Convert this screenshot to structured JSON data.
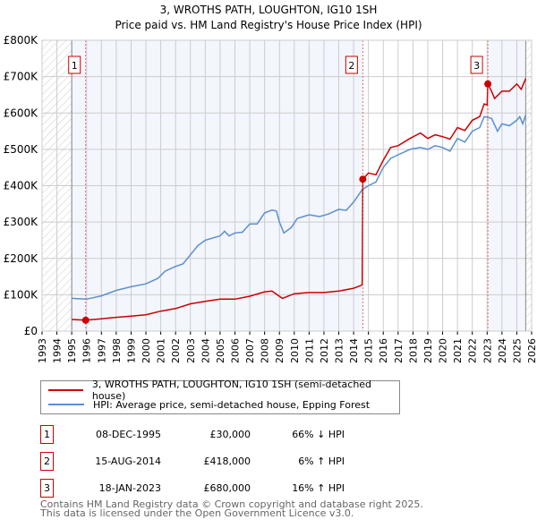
{
  "chart_data": {
    "type": "line",
    "title": "3, WROTHS PATH, LOUGHTON, IG10 1SH",
    "subtitle": "Price paid vs. HM Land Registry's House Price Index (HPI)",
    "xlim": [
      1993,
      2026
    ],
    "ylim": [
      0,
      800000
    ],
    "x_ticks": [
      "1993",
      "1994",
      "1995",
      "1996",
      "1997",
      "1998",
      "1999",
      "2000",
      "2001",
      "2002",
      "2003",
      "2004",
      "2005",
      "2006",
      "2007",
      "2008",
      "2009",
      "2010",
      "2011",
      "2012",
      "2013",
      "2014",
      "2015",
      "2016",
      "2017",
      "2018",
      "2019",
      "2020",
      "2021",
      "2022",
      "2023",
      "2024",
      "2025",
      "2026"
    ],
    "y_ticks": [
      {
        "v": 0,
        "label": "£0"
      },
      {
        "v": 100000,
        "label": "£100K"
      },
      {
        "v": 200000,
        "label": "£200K"
      },
      {
        "v": 300000,
        "label": "£300K"
      },
      {
        "v": 400000,
        "label": "£400K"
      },
      {
        "v": 500000,
        "label": "£500K"
      },
      {
        "v": 600000,
        "label": "£600K"
      },
      {
        "v": 700000,
        "label": "£700K"
      },
      {
        "v": 800000,
        "label": "£800K"
      }
    ],
    "grid": true,
    "series": [
      {
        "name": "3, WROTHS PATH, LOUGHTON, IG10 1SH (semi-detached house)",
        "color": "#cc0000",
        "x": [
          1995.0,
          1995.94,
          1997,
          1998,
          1999,
          2000,
          2001,
          2002,
          2003,
          2004,
          2005,
          2006,
          2007,
          2008,
          2008.5,
          2009.2,
          2010,
          2011,
          2012,
          2013,
          2014,
          2014.58,
          2014.62,
          2015,
          2015.5,
          2016,
          2016.5,
          2017,
          2017.8,
          2018.5,
          2019,
          2019.5,
          2020,
          2020.5,
          2021,
          2021.5,
          2022,
          2022.5,
          2022.8,
          2023.0,
          2023.05,
          2023.3,
          2023.5,
          2024,
          2024.5,
          2025,
          2025.3,
          2025.6
        ],
        "y": [
          32000,
          30000,
          34000,
          38000,
          41000,
          45000,
          55000,
          62000,
          75000,
          82000,
          88000,
          88000,
          96000,
          108000,
          110000,
          90000,
          103000,
          106000,
          106000,
          110000,
          118000,
          127000,
          418000,
          435000,
          430000,
          470000,
          505000,
          510000,
          530000,
          545000,
          530000,
          540000,
          535000,
          528000,
          560000,
          552000,
          580000,
          590000,
          625000,
          622000,
          680000,
          660000,
          640000,
          660000,
          660000,
          680000,
          665000,
          695000
        ]
      },
      {
        "name": "HPI: Average price, semi-detached house, Epping Forest",
        "color": "#5b8fd0",
        "x": [
          1995,
          1996,
          1997,
          1998,
          1999,
          2000,
          2000.8,
          2001.3,
          2002,
          2002.5,
          2003,
          2003.5,
          2004,
          2005,
          2005.3,
          2005.6,
          2006,
          2006.5,
          2007,
          2007.5,
          2008,
          2008.5,
          2008.8,
          2009,
          2009.3,
          2009.8,
          2010.2,
          2011,
          2011.7,
          2012.3,
          2013,
          2013.5,
          2014,
          2014.6,
          2015,
          2015.5,
          2016,
          2016.5,
          2017,
          2017.8,
          2018.5,
          2019,
          2019.5,
          2020,
          2020.5,
          2021,
          2021.5,
          2022,
          2022.5,
          2022.8,
          2023.3,
          2023.7,
          2024,
          2024.5,
          2025,
          2025.2,
          2025.4,
          2025.6
        ],
        "y": [
          90000,
          88000,
          97000,
          112000,
          122000,
          130000,
          145000,
          165000,
          178000,
          185000,
          210000,
          235000,
          250000,
          262000,
          275000,
          262000,
          270000,
          272000,
          295000,
          295000,
          325000,
          333000,
          330000,
          300000,
          270000,
          285000,
          310000,
          320000,
          315000,
          322000,
          335000,
          332000,
          355000,
          390000,
          400000,
          410000,
          450000,
          475000,
          485000,
          500000,
          505000,
          500000,
          510000,
          505000,
          495000,
          530000,
          520000,
          550000,
          560000,
          590000,
          585000,
          550000,
          570000,
          565000,
          580000,
          590000,
          570000,
          595000
        ]
      }
    ],
    "sales": [
      {
        "label": "1",
        "x": 1995.94,
        "y": 30000,
        "date": "08-DEC-1995",
        "price": "£30,000",
        "hpi": "66% ↓ HPI"
      },
      {
        "label": "2",
        "x": 2014.62,
        "y": 418000,
        "date": "15-AUG-2014",
        "price": "£418,000",
        "hpi": "6% ↑ HPI"
      },
      {
        "label": "3",
        "x": 2023.05,
        "y": 680000,
        "date": "18-JAN-2023",
        "price": "£680,000",
        "hpi": "16% ↑ HPI"
      }
    ],
    "legend": "bottom"
  },
  "footer": [
    "Contains HM Land Registry data © Crown copyright and database right 2025.",
    "This data is licensed under the Open Government Licence v3.0."
  ]
}
